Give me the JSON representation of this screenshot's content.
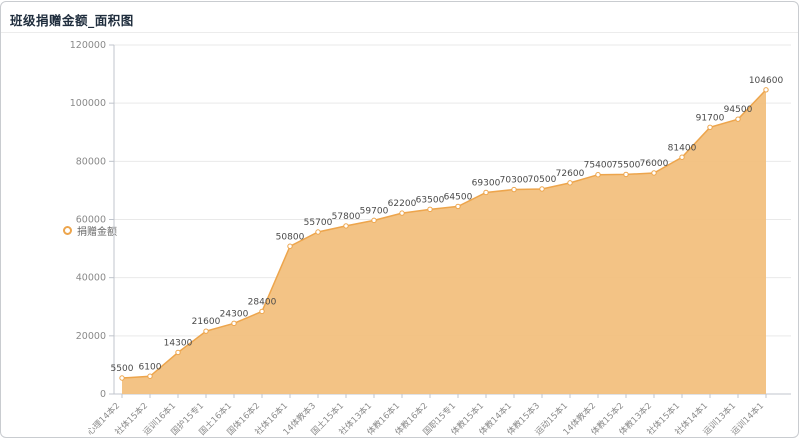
{
  "header": {
    "title": "班级捐赠金额_面积图"
  },
  "legend": {
    "label": "捐赠金额",
    "marker": "ring-icon",
    "color": "#eda54c"
  },
  "chart_data": {
    "type": "area",
    "title": "班级捐赠金额_面积图",
    "xlabel": "",
    "ylabel": "",
    "categories": [
      "心理14本2",
      "社体15本2",
      "运训16本1",
      "国护15专1",
      "国土16本1",
      "国体16本2",
      "社体16本1",
      "14体教本3",
      "国土15本1",
      "社体13本1",
      "体教16本1",
      "体教16本2",
      "国职15专1",
      "体教15本1",
      "体教14本1",
      "体教15本3",
      "运动15本1",
      "14体教本2",
      "体教15本2",
      "体教13本2",
      "社体15本1",
      "社体14本1",
      "运训13本1",
      "运训14本1"
    ],
    "series": [
      {
        "name": "捐赠金额",
        "values": [
          5500,
          6100,
          14300,
          21600,
          24300,
          28400,
          50800,
          55700,
          57800,
          59700,
          62200,
          63500,
          64500,
          69300,
          70300,
          70500,
          72600,
          75400,
          75500,
          76000,
          81400,
          91700,
          94500,
          104600
        ]
      }
    ],
    "ylim": [
      0,
      120000
    ],
    "ytick_interval": 20000,
    "grid": true,
    "legend_position": "left",
    "show_point_labels": true,
    "colors": {
      "line": "#eda54c",
      "fill": "#f2c07e",
      "marker_fill": "#ffffff",
      "axis": "#c0c4cc",
      "gridline": "#e9e9e9",
      "point_label": "#4a4a4a",
      "tick_label": "#8a8a8a"
    }
  }
}
